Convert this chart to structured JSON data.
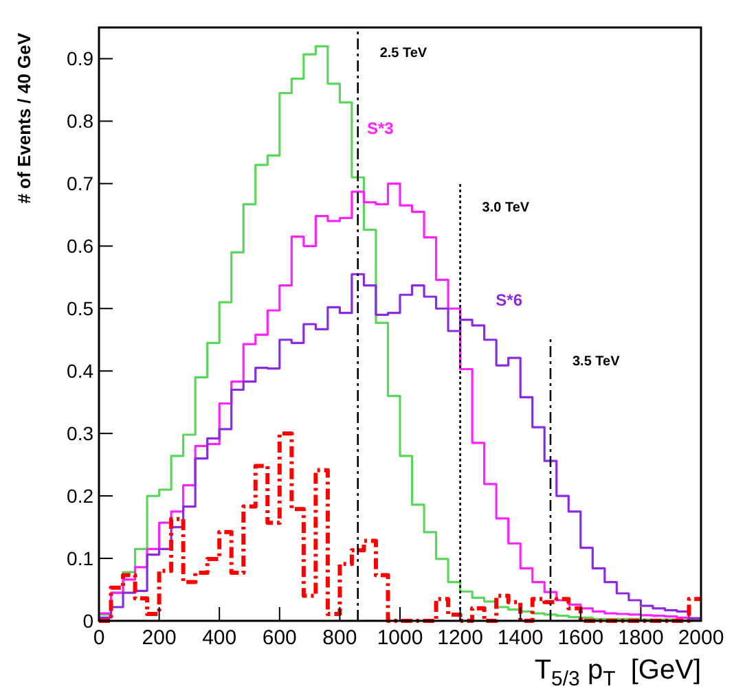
{
  "chart_data": {
    "type": "histogram",
    "xlabel": "T$_{5/3}$ p$_{T}$  [GeV]",
    "ylabel": "# of Events / 40 GeV",
    "bins": [
      0,
      40,
      80,
      120,
      160,
      200,
      240,
      280,
      320,
      360,
      400,
      440,
      480,
      520,
      560,
      600,
      640,
      680,
      720,
      760,
      800,
      840,
      880,
      920,
      960,
      1000,
      1040,
      1080,
      1120,
      1160,
      1200,
      1240,
      1280,
      1320,
      1360,
      1400,
      1440,
      1480,
      1520,
      1560,
      1600,
      1640,
      1680,
      1720,
      1760,
      1800,
      1840,
      1880,
      1920,
      1960,
      2000
    ],
    "xlim": [
      0,
      2000
    ],
    "xticks": [
      0,
      200,
      400,
      600,
      800,
      1000,
      1200,
      1400,
      1600,
      1800,
      2000
    ],
    "ylim": [
      0,
      0.95
    ],
    "yticks": [
      0,
      0.1,
      0.2,
      0.3,
      0.4,
      0.5,
      0.6,
      0.7,
      0.8,
      0.9
    ],
    "grid": false,
    "series": [
      {
        "color": "#5ad65a",
        "values": [
          0.01,
          0.045,
          0.078,
          0.115,
          0.2,
          0.21,
          0.264,
          0.298,
          0.39,
          0.445,
          0.51,
          0.59,
          0.667,
          0.73,
          0.745,
          0.845,
          0.868,
          0.907,
          0.92,
          0.86,
          0.83,
          0.71,
          0.626,
          0.477,
          0.36,
          0.264,
          0.186,
          0.142,
          0.099,
          0.062,
          0.047,
          0.037,
          0.031,
          0.022,
          0.018,
          0.015,
          0.012,
          0.01,
          0.008,
          0.006,
          0.005,
          0.003,
          0.003,
          0.003,
          0.003,
          0.002,
          0.002,
          0.002,
          0.001,
          0.001
        ]
      },
      {
        "name": "S*3",
        "color": "#ff22ff",
        "values": [
          0.012,
          0.045,
          0.066,
          0.086,
          0.115,
          0.157,
          0.175,
          0.217,
          0.28,
          0.283,
          0.348,
          0.383,
          0.443,
          0.458,
          0.497,
          0.537,
          0.615,
          0.6,
          0.648,
          0.64,
          0.645,
          0.687,
          0.67,
          0.667,
          0.7,
          0.665,
          0.655,
          0.614,
          0.546,
          0.5,
          0.403,
          0.285,
          0.219,
          0.164,
          0.124,
          0.084,
          0.062,
          0.046,
          0.033,
          0.026,
          0.02,
          0.015,
          0.012,
          0.011,
          0.01,
          0.009,
          0.008,
          0.007,
          0.005,
          0.004
        ]
      },
      {
        "name": "S*6",
        "color": "#8a2be2",
        "values": [
          0.005,
          0.022,
          0.045,
          0.048,
          0.106,
          0.115,
          0.15,
          0.183,
          0.26,
          0.292,
          0.307,
          0.37,
          0.383,
          0.405,
          0.404,
          0.45,
          0.445,
          0.475,
          0.467,
          0.502,
          0.493,
          0.555,
          0.537,
          0.49,
          0.493,
          0.522,
          0.537,
          0.519,
          0.5,
          0.464,
          0.482,
          0.473,
          0.45,
          0.409,
          0.421,
          0.358,
          0.31,
          0.256,
          0.2,
          0.175,
          0.117,
          0.084,
          0.062,
          0.044,
          0.033,
          0.024,
          0.02,
          0.017,
          0.015,
          0.004
        ]
      },
      {
        "color": "#ff0000",
        "line_style": "dashed",
        "values": [
          0,
          0.053,
          0.073,
          0.036,
          0.011,
          0.08,
          0.163,
          0.062,
          0.077,
          0.099,
          0.142,
          0.077,
          0.183,
          0.248,
          0.157,
          0.3,
          0.179,
          0.04,
          0.241,
          0.011,
          0.091,
          0.113,
          0.128,
          0.073,
          0,
          0,
          0,
          0,
          0.035,
          0.01,
          0,
          0.02,
          0,
          0.04,
          0.03,
          0,
          0.035,
          0.03,
          0.035,
          0.02,
          0,
          0,
          0,
          0,
          0,
          0,
          0,
          0,
          0,
          0.035
        ]
      }
    ],
    "ref_lines": [
      {
        "axis": "x",
        "value": 860,
        "label": "2.5 TeV",
        "line_style": "dashed"
      },
      {
        "axis": "x",
        "value": 1200,
        "label": "3.0 TeV",
        "line_style": "dotted"
      },
      {
        "axis": "x",
        "value": 1500,
        "label": "3.5 TeV",
        "line_style": "dashed"
      }
    ]
  }
}
